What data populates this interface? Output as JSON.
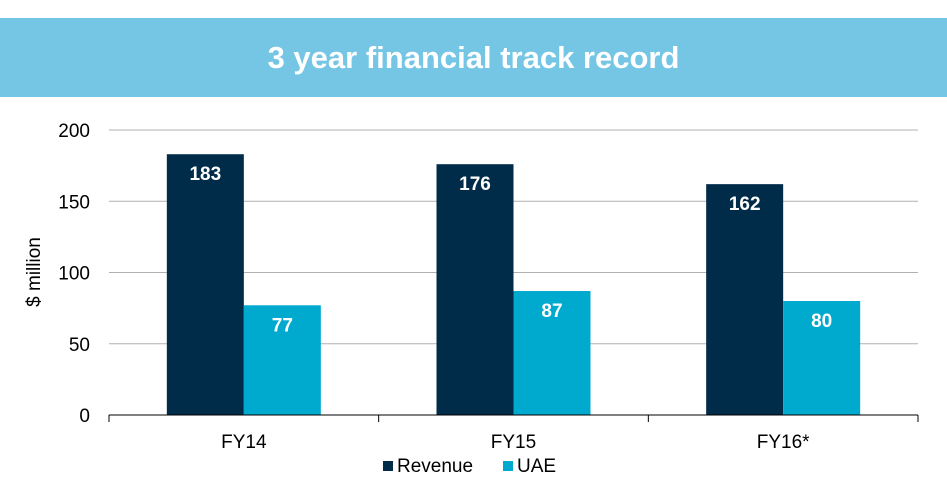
{
  "chart_data": {
    "type": "bar",
    "title": "3 year financial track record",
    "ylabel": "$ million",
    "xlabel": "",
    "categories": [
      "FY14",
      "FY15",
      "FY16*"
    ],
    "series": [
      {
        "name": "Revenue",
        "color": "#002b49",
        "values": [
          183,
          176,
          162
        ]
      },
      {
        "name": "UAE",
        "color": "#00a9ce",
        "values": [
          77,
          87,
          80
        ]
      }
    ],
    "ylim": [
      0,
      200
    ],
    "yticks": [
      0,
      50,
      100,
      150,
      200
    ],
    "grid": true,
    "legend": "bottom-center"
  }
}
